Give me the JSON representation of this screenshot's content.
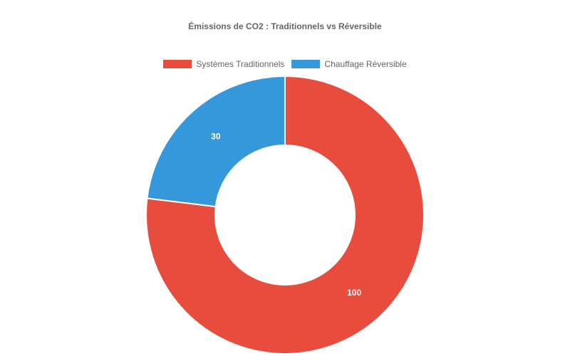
{
  "chart_data": {
    "type": "pie",
    "title": "Émissions de CO2 : Traditionnels vs Réversible",
    "categories": [
      "Systèmes Traditionnels",
      "Chauffage Réversible"
    ],
    "values": [
      100,
      30
    ],
    "colors": [
      "#e74c3c",
      "#3498db"
    ],
    "donut": true,
    "legend_position": "top",
    "data_labels": [
      "100",
      "30"
    ]
  }
}
